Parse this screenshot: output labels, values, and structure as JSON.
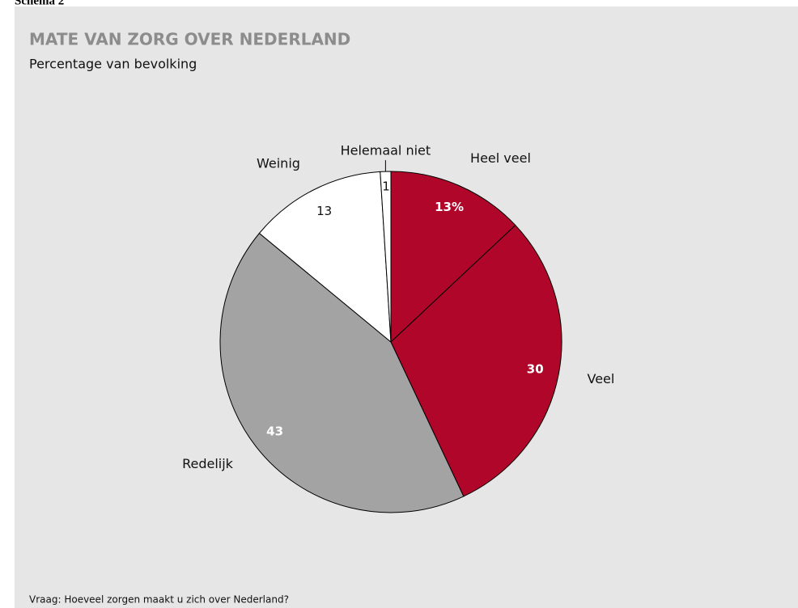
{
  "header": "Schema 2",
  "chart_data": {
    "type": "pie",
    "title": "MATE VAN ZORG OVER NEDERLAND",
    "subtitle": "Percentage van bevolking",
    "categories": [
      "Heel veel",
      "Veel",
      "Redelijk",
      "Weinig",
      "Helemaal niet"
    ],
    "values": [
      13,
      30,
      43,
      13,
      1
    ],
    "value_labels": [
      "13%",
      "30",
      "43",
      "13",
      "1"
    ],
    "colors": [
      "#b0062a",
      "#b0062a",
      "#a3a3a3",
      "#ffffff",
      "#ffffff"
    ],
    "note": "Vraag: Hoeveel zorgen maakt u zich over Nederland?"
  }
}
